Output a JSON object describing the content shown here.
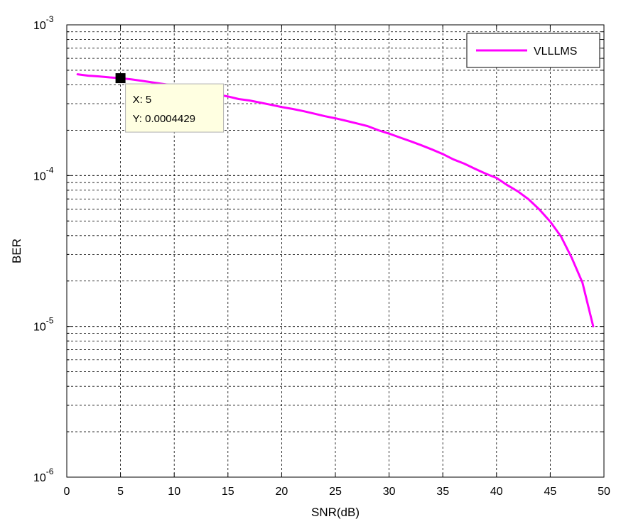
{
  "chart_data": {
    "type": "line",
    "title": "",
    "xlabel": "SNR(dB)",
    "ylabel": "BER",
    "xlim": [
      0,
      50
    ],
    "ylim": [
      1e-06,
      0.001
    ],
    "yscale": "log",
    "grid": true,
    "legend_position": "top-right",
    "x_ticks": [
      "0",
      "5",
      "10",
      "15",
      "20",
      "25",
      "30",
      "35",
      "40",
      "45",
      "50"
    ],
    "y_ticks": [
      {
        "base": "10",
        "exp": "-6"
      },
      {
        "base": "10",
        "exp": "-5"
      },
      {
        "base": "10",
        "exp": "-4"
      },
      {
        "base": "10",
        "exp": "-3"
      }
    ],
    "series": [
      {
        "name": "VLLLMS",
        "color": "#ff00ff",
        "x": [
          1,
          2,
          3,
          4,
          5,
          6,
          7,
          8,
          9,
          10,
          11,
          12,
          13,
          14,
          15,
          16,
          17,
          18,
          19,
          20,
          21,
          22,
          23,
          24,
          25,
          26,
          27,
          28,
          29,
          30,
          31,
          32,
          33,
          34,
          35,
          36,
          37,
          38,
          39,
          40,
          41,
          42,
          43,
          44,
          45,
          46,
          47,
          48,
          49
        ],
        "y": [
          0.00047,
          0.00046,
          0.000455,
          0.000448,
          0.0004429,
          0.000435,
          0.000425,
          0.000415,
          0.000405,
          0.000395,
          0.000382,
          0.00037,
          0.000357,
          0.000345,
          0.000335,
          0.000322,
          0.000315,
          0.000305,
          0.000295,
          0.000285,
          0.000277,
          0.000268,
          0.000258,
          0.000248,
          0.00024,
          0.000231,
          0.000222,
          0.000213,
          0.0002,
          0.00019,
          0.000179,
          0.000169,
          0.000159,
          0.000149,
          0.000139,
          0.000128,
          0.00012,
          0.000111,
          0.000103,
          9.65e-05,
          8.65e-05,
          7.85e-05,
          6.95e-05,
          5.95e-05,
          4.95e-05,
          3.95e-05,
          2.85e-05,
          1.95e-05,
          1e-05
        ]
      }
    ],
    "data_tip": {
      "x_text": "X: 5",
      "y_text": "Y: 0.0004429",
      "x": 5,
      "y": 0.0004429
    }
  }
}
